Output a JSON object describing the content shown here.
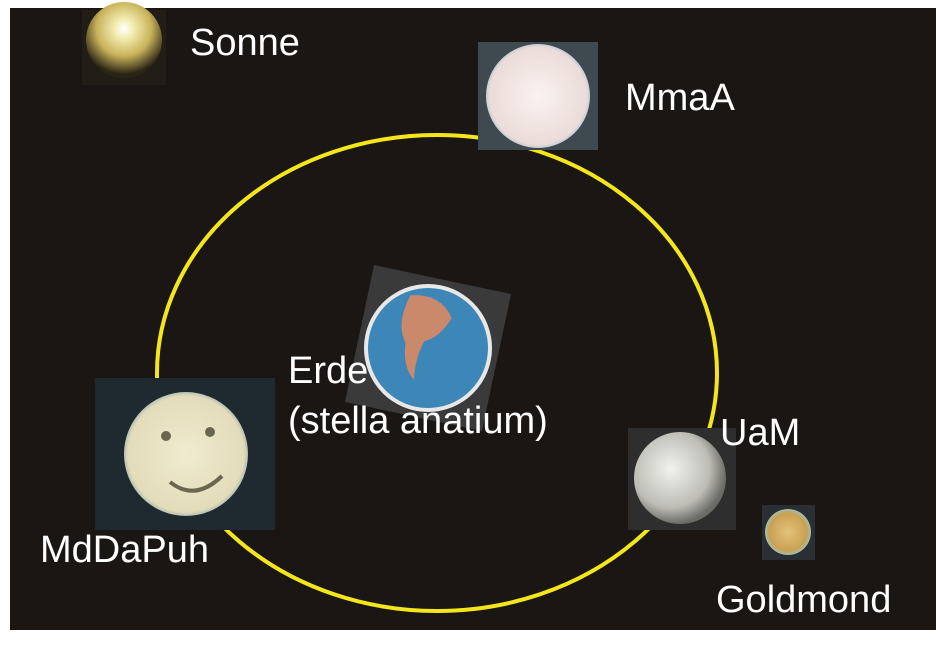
{
  "nodes": [
    {
      "label": "Sonne"
    },
    {
      "label": "MmaA"
    },
    {
      "label": "Erde",
      "sublabel": "(stella anatium)"
    },
    {
      "label": "UaM"
    },
    {
      "label": "MdDaPuh"
    },
    {
      "label": "Goldmond"
    }
  ]
}
